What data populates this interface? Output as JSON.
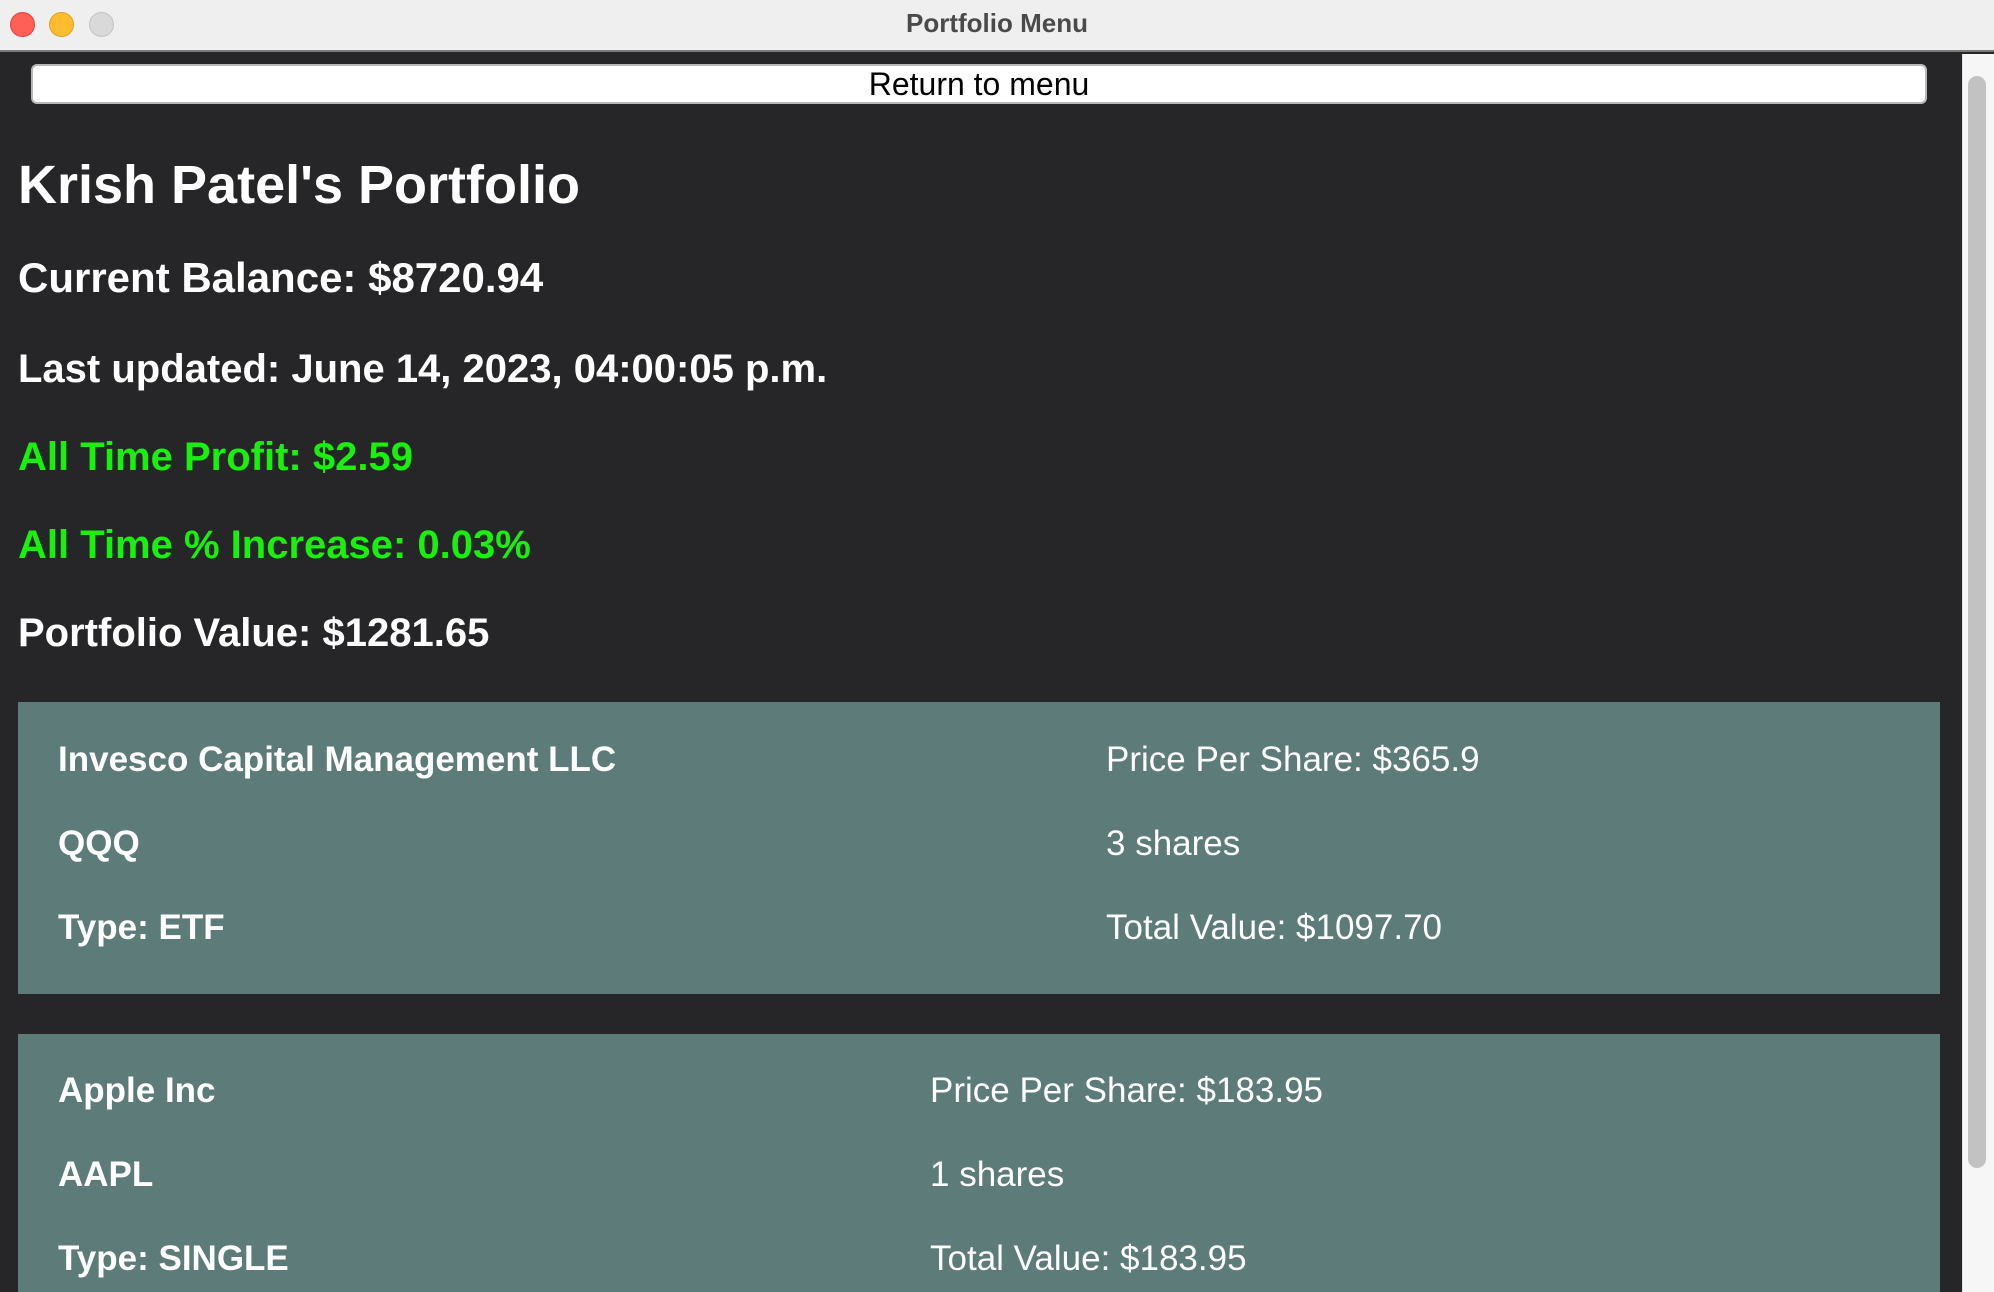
{
  "window": {
    "title": "Portfolio Menu"
  },
  "toolbar": {
    "return_label": "Return to menu"
  },
  "portfolio": {
    "title": "Krish Patel's Portfolio",
    "current_balance": "Current Balance: $8720.94",
    "last_updated": "Last updated: June 14, 2023, 04:00:05 p.m.",
    "all_time_profit": "All Time Profit: $2.59",
    "all_time_increase": "All Time % Increase: 0.03%",
    "portfolio_value": "Portfolio Value: $1281.65"
  },
  "holdings": [
    {
      "name": "Invesco Capital Management LLC",
      "ticker": "QQQ",
      "type": "Type: ETF",
      "price": "Price Per Share: $365.9",
      "shares": "3 shares",
      "total": "Total Value: $1097.70"
    },
    {
      "name": "Apple Inc",
      "ticker": "AAPL",
      "type": "Type: SINGLE",
      "price": "Price Per Share: $183.95",
      "shares": "1 shares",
      "total": "Total Value: $183.95"
    }
  ],
  "colors": {
    "background": "#262628",
    "card": "#5c7b79",
    "gain": "#19f00e",
    "text": "#ffffff"
  }
}
